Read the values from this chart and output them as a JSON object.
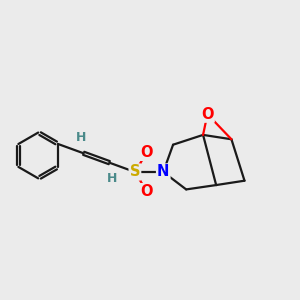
{
  "bg_color": "#ebebeb",
  "bond_color": "#1a1a1a",
  "bond_width": 1.6,
  "atom_colors": {
    "O": "#ff0000",
    "N": "#0000ff",
    "S": "#ccaa00",
    "H": "#4a8a8a",
    "C": "#1a1a1a"
  },
  "font_size": 10.5
}
